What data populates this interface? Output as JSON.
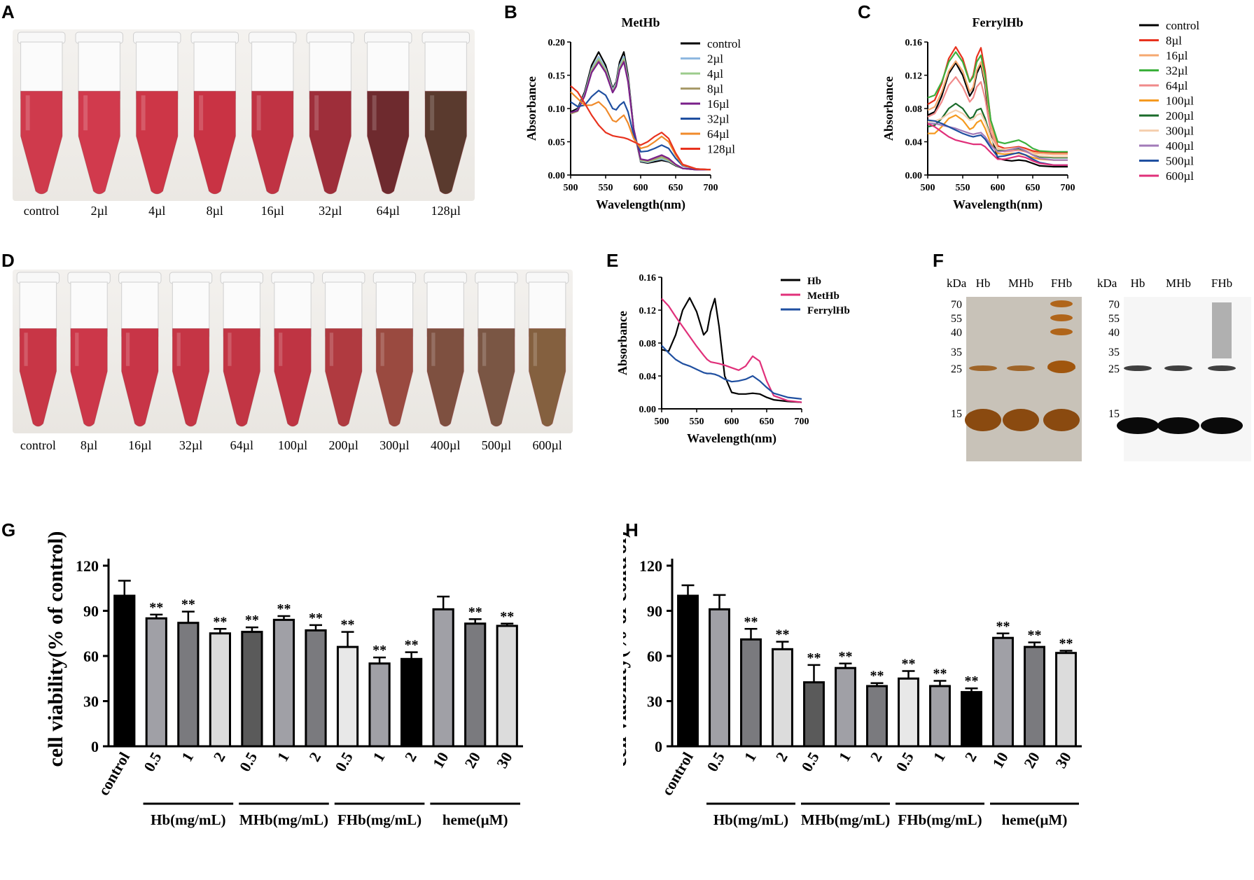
{
  "panels": {
    "A": {
      "letter": "A",
      "tubes": [
        {
          "label": "control",
          "color": "#cf3a4c"
        },
        {
          "label": "2µl",
          "color": "#d13a4d"
        },
        {
          "label": "4µl",
          "color": "#cd3647"
        },
        {
          "label": "8µl",
          "color": "#c93344"
        },
        {
          "label": "16µl",
          "color": "#c03343"
        },
        {
          "label": "32µl",
          "color": "#9e2e3a"
        },
        {
          "label": "64µl",
          "color": "#6e2a2e"
        },
        {
          "label": "128µl",
          "color": "#5a3a2e"
        }
      ]
    },
    "B": {
      "letter": "B"
    },
    "C": {
      "letter": "C"
    },
    "D": {
      "letter": "D",
      "tubes": [
        {
          "label": "control",
          "color": "#c83646"
        },
        {
          "label": "8µl",
          "color": "#cc3749"
        },
        {
          "label": "16µl",
          "color": "#c83547"
        },
        {
          "label": "32µl",
          "color": "#c53545"
        },
        {
          "label": "64µl",
          "color": "#c23544"
        },
        {
          "label": "100µl",
          "color": "#bf3443"
        },
        {
          "label": "200µl",
          "color": "#b03a40"
        },
        {
          "label": "300µl",
          "color": "#9a4a40"
        },
        {
          "label": "400µl",
          "color": "#7e5040"
        },
        {
          "label": "500µl",
          "color": "#7a5644"
        },
        {
          "label": "600µl",
          "color": "#84603f"
        }
      ]
    },
    "E": {
      "letter": "E"
    },
    "F": {
      "letter": "F",
      "gel": {
        "kda": "kDa",
        "lanes": [
          "Hb",
          "MHb",
          "FHb"
        ],
        "markers": [
          "70",
          "55",
          "40",
          "35",
          "25",
          "15"
        ]
      },
      "blot": {
        "kda": "kDa",
        "lanes": [
          "Hb",
          "MHb",
          "FHb"
        ],
        "markers": [
          "70",
          "55",
          "40",
          "35",
          "25",
          "15"
        ]
      }
    },
    "G": {
      "letter": "G"
    },
    "H": {
      "letter": "H"
    }
  },
  "chart_data": [
    {
      "id": "B",
      "type": "line",
      "title": "MetHb",
      "xlabel": "Wavelength(nm)",
      "ylabel": "Absorbance",
      "xlim": [
        500,
        700
      ],
      "ylim": [
        0,
        0.2
      ],
      "xticks": [
        500,
        550,
        600,
        650,
        700
      ],
      "yticks": [
        0.0,
        0.05,
        0.1,
        0.15,
        0.2
      ],
      "ytick_labels": [
        "0.00",
        "0.05",
        "0.10",
        "0.15",
        "0.20"
      ],
      "legend_position": "right",
      "x": [
        500,
        510,
        520,
        530,
        540,
        550,
        560,
        565,
        570,
        576,
        582,
        590,
        600,
        610,
        620,
        630,
        640,
        650,
        660,
        680,
        700
      ],
      "series": [
        {
          "name": "control",
          "color": "#000000",
          "values": [
            0.095,
            0.1,
            0.125,
            0.165,
            0.185,
            0.165,
            0.13,
            0.14,
            0.17,
            0.185,
            0.15,
            0.07,
            0.02,
            0.018,
            0.02,
            0.022,
            0.02,
            0.014,
            0.01,
            0.008,
            0.008
          ]
        },
        {
          "name": "2µl",
          "color": "#8fb8e0",
          "values": [
            0.093,
            0.098,
            0.122,
            0.16,
            0.178,
            0.16,
            0.128,
            0.138,
            0.165,
            0.178,
            0.145,
            0.07,
            0.021,
            0.019,
            0.022,
            0.024,
            0.021,
            0.015,
            0.01,
            0.008,
            0.008
          ]
        },
        {
          "name": "4µl",
          "color": "#9ccc8c",
          "values": [
            0.092,
            0.096,
            0.12,
            0.158,
            0.175,
            0.158,
            0.126,
            0.136,
            0.162,
            0.175,
            0.143,
            0.069,
            0.022,
            0.02,
            0.023,
            0.026,
            0.022,
            0.015,
            0.01,
            0.008,
            0.008
          ]
        },
        {
          "name": "8µl",
          "color": "#a89a6a",
          "values": [
            0.092,
            0.096,
            0.119,
            0.156,
            0.172,
            0.156,
            0.125,
            0.134,
            0.16,
            0.172,
            0.141,
            0.069,
            0.023,
            0.021,
            0.024,
            0.028,
            0.023,
            0.016,
            0.01,
            0.008,
            0.008
          ]
        },
        {
          "name": "16µl",
          "color": "#7a1f8a",
          "values": [
            0.094,
            0.097,
            0.119,
            0.154,
            0.17,
            0.154,
            0.124,
            0.133,
            0.158,
            0.17,
            0.14,
            0.069,
            0.024,
            0.022,
            0.026,
            0.03,
            0.025,
            0.016,
            0.01,
            0.008,
            0.008
          ]
        },
        {
          "name": "32µl",
          "color": "#1f4fa0",
          "values": [
            0.11,
            0.103,
            0.105,
            0.118,
            0.127,
            0.12,
            0.1,
            0.098,
            0.105,
            0.11,
            0.095,
            0.06,
            0.035,
            0.036,
            0.04,
            0.045,
            0.04,
            0.025,
            0.014,
            0.009,
            0.008
          ]
        },
        {
          "name": "64µl",
          "color": "#f08a2a",
          "values": [
            0.125,
            0.115,
            0.105,
            0.105,
            0.11,
            0.1,
            0.082,
            0.08,
            0.085,
            0.09,
            0.078,
            0.055,
            0.04,
            0.043,
            0.05,
            0.058,
            0.05,
            0.03,
            0.015,
            0.009,
            0.008
          ]
        },
        {
          "name": "128µl",
          "color": "#e8321e",
          "values": [
            0.134,
            0.125,
            0.108,
            0.09,
            0.075,
            0.064,
            0.059,
            0.058,
            0.057,
            0.056,
            0.054,
            0.05,
            0.045,
            0.05,
            0.058,
            0.064,
            0.055,
            0.033,
            0.016,
            0.009,
            0.008
          ]
        }
      ]
    },
    {
      "id": "C",
      "type": "line",
      "title": "FerrylHb",
      "xlabel": "Wavelength(nm)",
      "ylabel": "Absorbance",
      "xlim": [
        500,
        700
      ],
      "ylim": [
        0,
        0.16
      ],
      "xticks": [
        500,
        550,
        600,
        650,
        700
      ],
      "yticks": [
        0.0,
        0.04,
        0.08,
        0.12,
        0.16
      ],
      "ytick_labels": [
        "0.00",
        "0.04",
        "0.08",
        "0.12",
        "0.16"
      ],
      "legend_position": "right",
      "x": [
        500,
        510,
        520,
        530,
        540,
        550,
        560,
        565,
        570,
        576,
        582,
        590,
        600,
        610,
        620,
        630,
        640,
        650,
        660,
        680,
        700
      ],
      "series": [
        {
          "name": "control",
          "color": "#000000",
          "values": [
            0.072,
            0.076,
            0.095,
            0.122,
            0.135,
            0.12,
            0.095,
            0.102,
            0.122,
            0.133,
            0.108,
            0.05,
            0.02,
            0.018,
            0.017,
            0.018,
            0.017,
            0.014,
            0.011,
            0.01,
            0.01
          ]
        },
        {
          "name": "8µl",
          "color": "#e8321e",
          "values": [
            0.085,
            0.09,
            0.11,
            0.14,
            0.154,
            0.14,
            0.112,
            0.12,
            0.142,
            0.153,
            0.125,
            0.065,
            0.035,
            0.032,
            0.033,
            0.034,
            0.032,
            0.029,
            0.028,
            0.027,
            0.027
          ]
        },
        {
          "name": "16µl",
          "color": "#f5a870",
          "values": [
            0.078,
            0.082,
            0.1,
            0.125,
            0.137,
            0.125,
            0.1,
            0.106,
            0.126,
            0.136,
            0.112,
            0.06,
            0.032,
            0.03,
            0.031,
            0.032,
            0.03,
            0.027,
            0.026,
            0.025,
            0.025
          ]
        },
        {
          "name": "32µl",
          "color": "#3cb03c",
          "values": [
            0.093,
            0.096,
            0.112,
            0.136,
            0.148,
            0.136,
            0.112,
            0.118,
            0.136,
            0.144,
            0.12,
            0.066,
            0.04,
            0.038,
            0.04,
            0.042,
            0.038,
            0.032,
            0.029,
            0.028,
            0.028
          ]
        },
        {
          "name": "64µl",
          "color": "#f08a8a",
          "values": [
            0.07,
            0.074,
            0.088,
            0.108,
            0.118,
            0.106,
            0.088,
            0.093,
            0.106,
            0.112,
            0.092,
            0.052,
            0.03,
            0.028,
            0.029,
            0.03,
            0.028,
            0.025,
            0.023,
            0.022,
            0.022
          ]
        },
        {
          "name": "100µl",
          "color": "#f59a20",
          "values": [
            0.05,
            0.05,
            0.058,
            0.068,
            0.072,
            0.066,
            0.055,
            0.057,
            0.063,
            0.066,
            0.056,
            0.038,
            0.026,
            0.025,
            0.026,
            0.026,
            0.024,
            0.021,
            0.019,
            0.018,
            0.018
          ]
        },
        {
          "name": "200µl",
          "color": "#1a6b2a",
          "values": [
            0.058,
            0.06,
            0.068,
            0.08,
            0.086,
            0.08,
            0.068,
            0.07,
            0.078,
            0.08,
            0.068,
            0.045,
            0.03,
            0.03,
            0.031,
            0.032,
            0.029,
            0.025,
            0.022,
            0.021,
            0.021
          ]
        },
        {
          "name": "300µl",
          "color": "#f5d0b0",
          "values": [
            0.064,
            0.065,
            0.068,
            0.074,
            0.078,
            0.074,
            0.066,
            0.067,
            0.072,
            0.074,
            0.064,
            0.045,
            0.031,
            0.031,
            0.032,
            0.033,
            0.03,
            0.026,
            0.023,
            0.022,
            0.022
          ]
        },
        {
          "name": "400µl",
          "color": "#a27ab8",
          "values": [
            0.062,
            0.062,
            0.06,
            0.058,
            0.056,
            0.053,
            0.05,
            0.049,
            0.05,
            0.051,
            0.046,
            0.036,
            0.028,
            0.029,
            0.031,
            0.033,
            0.029,
            0.024,
            0.02,
            0.018,
            0.018
          ]
        },
        {
          "name": "500µl",
          "color": "#1f4fa0",
          "values": [
            0.066,
            0.065,
            0.062,
            0.058,
            0.054,
            0.05,
            0.047,
            0.046,
            0.047,
            0.048,
            0.043,
            0.033,
            0.022,
            0.023,
            0.025,
            0.027,
            0.024,
            0.019,
            0.015,
            0.012,
            0.012
          ]
        },
        {
          "name": "600µl",
          "color": "#e0307a",
          "values": [
            0.062,
            0.058,
            0.052,
            0.046,
            0.042,
            0.04,
            0.038,
            0.037,
            0.037,
            0.037,
            0.034,
            0.027,
            0.019,
            0.019,
            0.021,
            0.023,
            0.021,
            0.017,
            0.014,
            0.012,
            0.012
          ]
        }
      ]
    },
    {
      "id": "E",
      "type": "line",
      "title": "",
      "xlabel": "Wavelength(nm)",
      "ylabel": "Absorbance",
      "xlim": [
        500,
        700
      ],
      "ylim": [
        0,
        0.16
      ],
      "xticks": [
        500,
        550,
        600,
        650,
        700
      ],
      "yticks": [
        0.0,
        0.04,
        0.08,
        0.12,
        0.16
      ],
      "ytick_labels": [
        "0.00",
        "0.04",
        "0.08",
        "0.12",
        "0.16"
      ],
      "legend_position": "right",
      "x": [
        500,
        510,
        520,
        530,
        540,
        550,
        560,
        565,
        570,
        576,
        582,
        590,
        600,
        610,
        620,
        630,
        640,
        650,
        660,
        680,
        700
      ],
      "series": [
        {
          "name": "Hb",
          "color": "#000000",
          "values": [
            0.072,
            0.07,
            0.09,
            0.12,
            0.135,
            0.118,
            0.09,
            0.095,
            0.118,
            0.134,
            0.1,
            0.04,
            0.02,
            0.018,
            0.018,
            0.019,
            0.018,
            0.014,
            0.011,
            0.009,
            0.008
          ]
        },
        {
          "name": "MetHb",
          "color": "#e0307a",
          "values": [
            0.134,
            0.125,
            0.112,
            0.1,
            0.088,
            0.076,
            0.065,
            0.06,
            0.057,
            0.056,
            0.055,
            0.053,
            0.05,
            0.047,
            0.052,
            0.064,
            0.058,
            0.034,
            0.016,
            0.01,
            0.008
          ]
        },
        {
          "name": "FerrylHb",
          "color": "#1f4fa0",
          "values": [
            0.077,
            0.068,
            0.06,
            0.055,
            0.052,
            0.048,
            0.044,
            0.043,
            0.043,
            0.042,
            0.04,
            0.036,
            0.033,
            0.034,
            0.036,
            0.04,
            0.034,
            0.026,
            0.019,
            0.014,
            0.012
          ]
        }
      ]
    },
    {
      "id": "G",
      "type": "bar",
      "ylabel": "cell viability(% of control)",
      "ylim": [
        0,
        120
      ],
      "yticks": [
        0,
        30,
        60,
        90,
        120
      ],
      "categories": [
        "control",
        "0.5",
        "1",
        "2",
        "0.5",
        "1",
        "2",
        "0.5",
        "1",
        "2",
        "10",
        "20",
        "30"
      ],
      "groups": [
        {
          "label": "Hb(mg/mL)",
          "from": 1,
          "to": 3
        },
        {
          "label": "MHb(mg/mL)",
          "from": 4,
          "to": 6
        },
        {
          "label": "FHb(mg/mL)",
          "from": 7,
          "to": 9
        },
        {
          "label": "heme(µM)",
          "from": 10,
          "to": 12
        }
      ],
      "values": [
        100,
        85,
        82,
        75,
        76,
        84,
        77,
        66,
        55,
        58,
        91,
        81.5,
        80
      ],
      "errors": [
        10,
        2.5,
        7.5,
        3,
        3,
        2.5,
        3.5,
        10,
        4,
        4.5,
        8.5,
        3,
        1.5
      ],
      "colors": [
        "#000000",
        "#a0a0a6",
        "#7a7a7e",
        "#dcdcdc",
        "#5a5a5a",
        "#a0a0a6",
        "#7a7a7e",
        "#e8e8e8",
        "#a0a0a6",
        "#000000",
        "#a0a0a6",
        "#7a7a7e",
        "#dcdcdc"
      ],
      "significance": [
        "",
        "**",
        "**",
        "**",
        "**",
        "**",
        "**",
        "**",
        "**",
        "**",
        "",
        "**",
        "**"
      ]
    },
    {
      "id": "H",
      "type": "bar",
      "ylabel": "cell viability(% of control)",
      "ylim": [
        0,
        120
      ],
      "yticks": [
        0,
        30,
        60,
        90,
        120
      ],
      "categories": [
        "control",
        "0.5",
        "1",
        "2",
        "0.5",
        "1",
        "2",
        "0.5",
        "1",
        "2",
        "10",
        "20",
        "30"
      ],
      "groups": [
        {
          "label": "Hb(mg/mL)",
          "from": 1,
          "to": 3
        },
        {
          "label": "MHb(mg/mL)",
          "from": 4,
          "to": 6
        },
        {
          "label": "FHb(mg/mL)",
          "from": 7,
          "to": 9
        },
        {
          "label": "heme(µM)",
          "from": 10,
          "to": 12
        }
      ],
      "values": [
        100,
        91,
        71,
        64.5,
        42.5,
        52,
        40,
        45,
        40,
        36,
        72,
        66,
        62
      ],
      "errors": [
        7,
        9.5,
        7,
        5,
        11.5,
        3,
        2,
        5,
        3.5,
        2.5,
        3,
        3,
        1.5
      ],
      "colors": [
        "#000000",
        "#a0a0a6",
        "#7a7a7e",
        "#dcdcdc",
        "#5a5a5a",
        "#a0a0a6",
        "#7a7a7e",
        "#e8e8e8",
        "#a0a0a6",
        "#000000",
        "#a0a0a6",
        "#7a7a7e",
        "#dcdcdc"
      ],
      "significance": [
        "",
        "",
        "**",
        "**",
        "**",
        "**",
        "**",
        "**",
        "**",
        "**",
        "**",
        "**",
        "**"
      ]
    }
  ]
}
